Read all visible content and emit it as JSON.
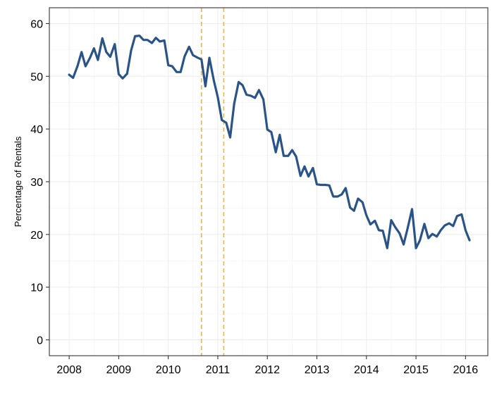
{
  "chart_data": {
    "type": "line",
    "title": "",
    "xlabel": "",
    "ylabel": "Percentage of Rentals",
    "xlim": [
      2007.6,
      2016.45
    ],
    "ylim": [
      -3,
      63
    ],
    "xticks": [
      2008,
      2009,
      2010,
      2011,
      2012,
      2013,
      2014,
      2015,
      2016
    ],
    "xtick_labels": [
      "2008",
      "2009",
      "2010",
      "2011",
      "2012",
      "2013",
      "2014",
      "2015",
      "2016"
    ],
    "yticks": [
      0,
      10,
      20,
      30,
      40,
      50,
      60
    ],
    "ytick_labels": [
      "0",
      "10",
      "20",
      "30",
      "40",
      "50",
      "60"
    ],
    "grid": true,
    "legend": "none",
    "series_color": "#2a5487",
    "vline_color": "#f0b44a",
    "vlines": [
      2010.67,
      2011.12
    ],
    "series": [
      {
        "x": [
          2008.0,
          2008.08,
          2008.17,
          2008.25,
          2008.33,
          2008.42,
          2008.5,
          2008.58,
          2008.67,
          2008.75,
          2008.83,
          2008.92,
          2009.0,
          2009.08,
          2009.17,
          2009.25,
          2009.33,
          2009.42,
          2009.5,
          2009.58,
          2009.67,
          2009.75,
          2009.83,
          2009.92,
          2010.0,
          2010.08,
          2010.17,
          2010.25,
          2010.33,
          2010.42,
          2010.5,
          2010.58,
          2010.67,
          2010.75,
          2010.83,
          2010.92,
          2011.0,
          2011.08,
          2011.17,
          2011.25,
          2011.33,
          2011.42,
          2011.5,
          2011.58,
          2011.67,
          2011.75,
          2011.83,
          2011.92,
          2012.0,
          2012.08,
          2012.17,
          2012.25,
          2012.33,
          2012.42,
          2012.5,
          2012.58,
          2012.67,
          2012.75,
          2012.83,
          2012.92,
          2013.0,
          2013.08,
          2013.17,
          2013.25,
          2013.33,
          2013.42,
          2013.5,
          2013.58,
          2013.67,
          2013.75,
          2013.83,
          2013.92,
          2014.0,
          2014.08,
          2014.17,
          2014.25,
          2014.33,
          2014.42,
          2014.5,
          2014.58,
          2014.67,
          2014.75,
          2014.83,
          2014.92,
          2015.0,
          2015.08,
          2015.17,
          2015.25,
          2015.33,
          2015.42,
          2015.5,
          2015.58,
          2015.67,
          2015.75,
          2015.83,
          2015.92,
          2016.0,
          2016.08
        ],
        "y": [
          50.3,
          49.7,
          52.0,
          54.6,
          51.9,
          53.5,
          55.3,
          53.1,
          57.2,
          54.6,
          53.7,
          56.1,
          50.4,
          49.6,
          50.5,
          54.9,
          57.6,
          57.7,
          56.9,
          56.9,
          56.3,
          57.3,
          56.6,
          56.8,
          52.1,
          51.9,
          50.8,
          50.8,
          53.8,
          55.6,
          54.0,
          53.6,
          53.2,
          48.1,
          53.5,
          49.2,
          46.0,
          41.7,
          41.2,
          38.4,
          44.8,
          48.9,
          48.3,
          46.5,
          46.3,
          45.9,
          47.4,
          45.6,
          39.9,
          39.4,
          35.6,
          38.9,
          34.9,
          34.9,
          36.0,
          34.8,
          31.1,
          32.9,
          31.0,
          32.6,
          29.5,
          29.4,
          29.4,
          29.3,
          27.2,
          27.2,
          27.6,
          28.8,
          25.1,
          24.5,
          26.8,
          26.1,
          23.6,
          21.9,
          22.6,
          20.8,
          20.7,
          17.4,
          22.7,
          21.4,
          20.2,
          18.1,
          21.1,
          24.8,
          17.4,
          18.9,
          22.0,
          19.3,
          20.1,
          19.6,
          20.8,
          21.7,
          22.1,
          21.6,
          23.5,
          23.8,
          20.8,
          18.9
        ]
      }
    ]
  }
}
